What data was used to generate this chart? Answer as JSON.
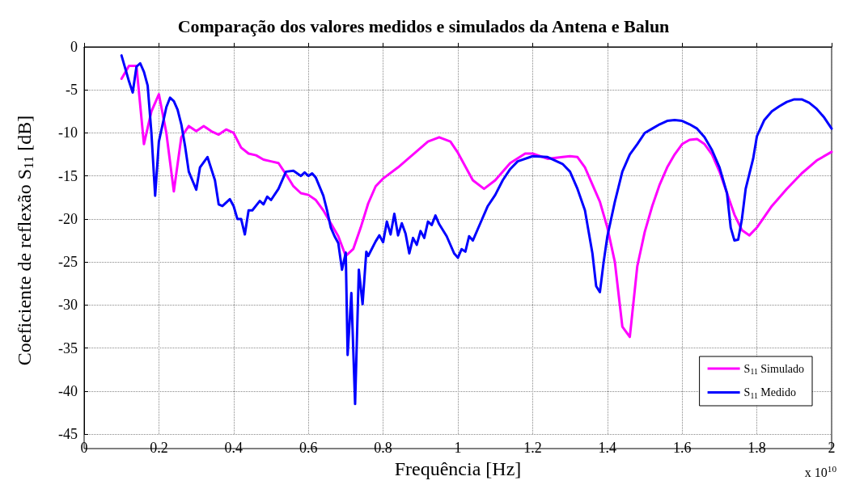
{
  "chart_data": {
    "type": "line",
    "title": "Comparação dos valores medidos e simulados da Antena e Balun",
    "xlabel": "Frequência [Hz]",
    "ylabel": "Coeficiente de reflexão S$_{11}$ [dB]",
    "annotations": [
      "x 10$^{10}$"
    ],
    "xlim": [
      0,
      2
    ],
    "xticks": [
      0,
      0.2,
      0.4,
      0.6,
      0.8,
      1,
      1.2,
      1.4,
      1.6,
      1.8,
      2
    ],
    "ylim": [
      -45,
      0
    ],
    "yticks": [
      -45,
      -40,
      -35,
      -30,
      -25,
      -20,
      -15,
      -10,
      -5,
      0
    ],
    "grid": true,
    "legend": "bottom right",
    "marker": "none",
    "line_style": "solid",
    "series": [
      {
        "name": "S$_{11}$ Simulado",
        "color": "#ff00ff",
        "x": [
          0.1,
          0.12,
          0.14,
          0.16,
          0.18,
          0.2,
          0.22,
          0.24,
          0.26,
          0.28,
          0.3,
          0.32,
          0.34,
          0.36,
          0.38,
          0.4,
          0.42,
          0.44,
          0.46,
          0.48,
          0.5,
          0.52,
          0.54,
          0.56,
          0.58,
          0.6,
          0.62,
          0.64,
          0.66,
          0.68,
          0.7,
          0.72,
          0.74,
          0.76,
          0.78,
          0.8,
          0.84,
          0.88,
          0.92,
          0.95,
          0.98,
          1.0,
          1.04,
          1.07,
          1.1,
          1.14,
          1.18,
          1.2,
          1.24,
          1.28,
          1.3,
          1.32,
          1.34,
          1.36,
          1.38,
          1.4,
          1.42,
          1.44,
          1.46,
          1.48,
          1.5,
          1.52,
          1.54,
          1.56,
          1.58,
          1.6,
          1.62,
          1.64,
          1.66,
          1.68,
          1.7,
          1.72,
          1.74,
          1.76,
          1.78,
          1.8,
          1.84,
          1.88,
          1.92,
          1.96,
          2.0
        ],
        "values": [
          -3.7,
          -2.2,
          -2.2,
          -11.3,
          -7.5,
          -5.5,
          -10,
          -16.8,
          -10.5,
          -9.2,
          -9.8,
          -9.2,
          -9.8,
          -10.2,
          -9.6,
          -10,
          -11.7,
          -12.4,
          -12.6,
          -13.1,
          -13.3,
          -13.5,
          -14.8,
          -16.2,
          -17,
          -17.2,
          -17.8,
          -19,
          -20.5,
          -22,
          -24.3,
          -23.5,
          -21,
          -18.2,
          -16.2,
          -15.3,
          -14,
          -12.5,
          -11,
          -10.5,
          -11,
          -12.3,
          -15.5,
          -16.5,
          -15.5,
          -13.5,
          -12.4,
          -12.4,
          -13,
          -12.8,
          -12.7,
          -12.8,
          -14,
          -16,
          -18,
          -21,
          -25,
          -32.5,
          -33.7,
          -25.5,
          -21.5,
          -18.5,
          -16,
          -14,
          -12.5,
          -11.3,
          -10.8,
          -10.7,
          -11.3,
          -12.5,
          -14.5,
          -17,
          -19.5,
          -21.3,
          -21.9,
          -21,
          -18.5,
          -16.5,
          -14.7,
          -13.2,
          -12.2
        ]
      },
      {
        "name": "S$_{11}$ Medido",
        "color": "#0000ff",
        "x": [
          0.1,
          0.12,
          0.13,
          0.14,
          0.15,
          0.16,
          0.17,
          0.18,
          0.19,
          0.2,
          0.22,
          0.23,
          0.24,
          0.25,
          0.26,
          0.27,
          0.28,
          0.3,
          0.31,
          0.33,
          0.35,
          0.36,
          0.37,
          0.39,
          0.4,
          0.41,
          0.42,
          0.43,
          0.44,
          0.45,
          0.47,
          0.48,
          0.49,
          0.5,
          0.52,
          0.54,
          0.56,
          0.58,
          0.59,
          0.6,
          0.61,
          0.62,
          0.64,
          0.65,
          0.66,
          0.67,
          0.68,
          0.69,
          0.7,
          0.705,
          0.715,
          0.725,
          0.735,
          0.745,
          0.755,
          0.76,
          0.78,
          0.79,
          0.8,
          0.81,
          0.82,
          0.83,
          0.84,
          0.85,
          0.86,
          0.87,
          0.88,
          0.89,
          0.9,
          0.91,
          0.92,
          0.93,
          0.94,
          0.95,
          0.97,
          0.99,
          1.0,
          1.01,
          1.02,
          1.03,
          1.04,
          1.06,
          1.08,
          1.1,
          1.12,
          1.14,
          1.16,
          1.2,
          1.24,
          1.28,
          1.3,
          1.32,
          1.34,
          1.35,
          1.36,
          1.37,
          1.38,
          1.39,
          1.4,
          1.42,
          1.44,
          1.46,
          1.48,
          1.5,
          1.52,
          1.54,
          1.56,
          1.58,
          1.6,
          1.62,
          1.64,
          1.66,
          1.68,
          1.7,
          1.72,
          1.73,
          1.74,
          1.75,
          1.76,
          1.77,
          1.79,
          1.8,
          1.82,
          1.84,
          1.86,
          1.88,
          1.9,
          1.92,
          1.94,
          1.96,
          1.98,
          2.0
        ],
        "values": [
          -1,
          -4,
          -5.3,
          -2.3,
          -1.9,
          -2.9,
          -4.5,
          -10,
          -17.3,
          -11,
          -7,
          -5.9,
          -6.3,
          -7.3,
          -9,
          -11.5,
          -14.5,
          -16.6,
          -14,
          -12.8,
          -15.5,
          -18.3,
          -18.5,
          -17.7,
          -18.5,
          -20,
          -20,
          -21.8,
          -19,
          -19,
          -17.9,
          -18.3,
          -17.4,
          -17.8,
          -16.5,
          -14.5,
          -14.4,
          -15,
          -14.6,
          -15,
          -14.7,
          -15.2,
          -17.3,
          -19,
          -21,
          -22,
          -22.8,
          -25.9,
          -23.9,
          -35.8,
          -28.6,
          -41.5,
          -25.9,
          -29.9,
          -23.8,
          -24.3,
          -22.6,
          -21.9,
          -22.7,
          -20.3,
          -21.8,
          -19.4,
          -21.9,
          -20.5,
          -21.7,
          -24,
          -22.2,
          -23,
          -21.4,
          -22.2,
          -20.3,
          -20.7,
          -19.6,
          -20.6,
          -22,
          -24,
          -24.5,
          -23.5,
          -23.8,
          -22,
          -22.5,
          -20.5,
          -18.5,
          -17.2,
          -15.5,
          -14.2,
          -13.3,
          -12.7,
          -12.8,
          -13.6,
          -14.5,
          -16.5,
          -19,
          -21.5,
          -24,
          -27.8,
          -28.5,
          -25,
          -22,
          -18,
          -14.5,
          -12.5,
          -11.3,
          -10,
          -9.5,
          -9,
          -8.6,
          -8.5,
          -8.6,
          -9,
          -9.5,
          -10.5,
          -12,
          -14,
          -17,
          -21,
          -22.5,
          -22.4,
          -20,
          -16.5,
          -13,
          -10.4,
          -8.5,
          -7.5,
          -6.9,
          -6.4,
          -6.1,
          -6.1,
          -6.5,
          -7.2,
          -8.2,
          -9.5
        ]
      }
    ]
  }
}
